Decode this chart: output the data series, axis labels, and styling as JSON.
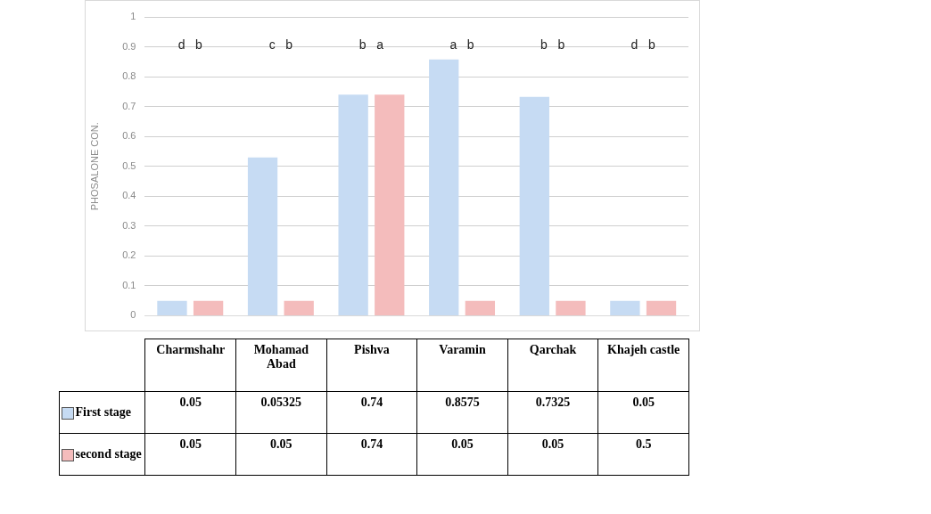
{
  "chart_data": {
    "type": "bar",
    "ylabel": "PHOSALONE CON.",
    "categories": [
      "Charmshahr",
      "Mohamad Abad",
      "Pishva",
      "Varamin",
      "Qarchak",
      "Khajeh castle"
    ],
    "series": [
      {
        "name": "First stage",
        "color": "#c6dbf3",
        "values": [
          0.05,
          0.53,
          0.74,
          0.8575,
          0.7325,
          0.05
        ]
      },
      {
        "name": "second stage",
        "color": "#f4bcbc",
        "values": [
          0.05,
          0.05,
          0.74,
          0.05,
          0.05,
          0.05
        ]
      }
    ],
    "ylim": [
      0,
      1
    ],
    "yticks": [
      0,
      0.1,
      0.2,
      0.3,
      0.4,
      0.5,
      0.6,
      0.7,
      0.8,
      0.9,
      1
    ],
    "grid": "y",
    "legend": "bottom",
    "tick_labels": "y",
    "annotations": [
      "d   b",
      "c   b",
      "b   a",
      "a   b",
      "b   b",
      "d   b",
      "0.05",
      "0.05325",
      "0.74",
      "0.8575",
      "0.7325",
      "0.05",
      "0.05",
      "0.05",
      "0.74",
      "0.05",
      "0.05",
      "0.5"
    ]
  }
}
